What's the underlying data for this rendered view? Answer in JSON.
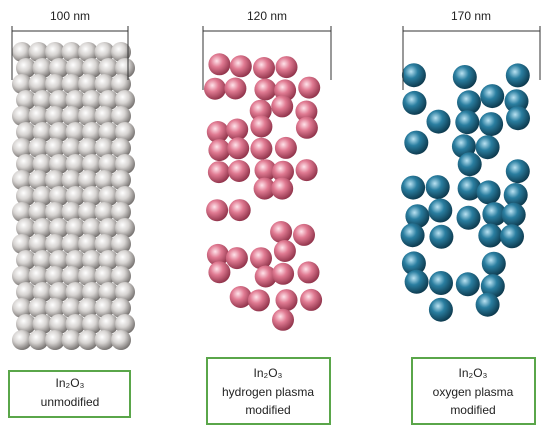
{
  "columns": [
    {
      "width_label": "100 nm",
      "caption": [
        "In₂O₃",
        "unmodified"
      ]
    },
    {
      "width_label": "120 nm",
      "caption": [
        "In₂O₃",
        "hydrogen plasma",
        "modified"
      ]
    },
    {
      "width_label": "170 nm",
      "caption": [
        "In₂O₃",
        "oxygen plasma",
        "modified"
      ]
    }
  ]
}
